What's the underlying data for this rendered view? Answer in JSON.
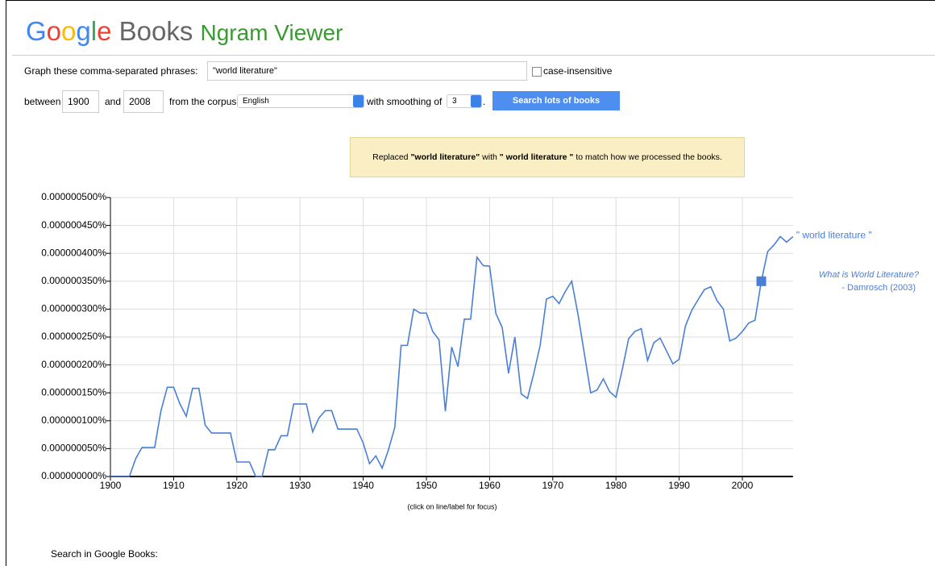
{
  "header": {
    "logo_letters": [
      "G",
      "o",
      "o",
      "g",
      "l",
      "e"
    ],
    "books": "Books",
    "product": "Ngram Viewer"
  },
  "form": {
    "phrases_label": "Graph these comma-separated phrases:",
    "phrases_value": "\"world literature\"",
    "case_label": "case-insensitive",
    "between": "between",
    "start_year": "1900",
    "and": "and",
    "end_year": "2008",
    "corpus_label": "from the corpus",
    "corpus": "English",
    "smoothing_label": "with smoothing of",
    "smoothing": "3",
    "period": ".",
    "button": "Search lots of books"
  },
  "notice": {
    "before": "Replaced ",
    "original": "\"world literature\"",
    "middle": " with ",
    "replacement": "\" world literature \"",
    "after": " to match how we processed the books."
  },
  "chart_data": {
    "type": "line",
    "x": [
      1900,
      1901,
      1902,
      1903,
      1904,
      1905,
      1906,
      1907,
      1908,
      1909,
      1910,
      1911,
      1912,
      1913,
      1914,
      1915,
      1916,
      1917,
      1918,
      1919,
      1920,
      1921,
      1922,
      1923,
      1924,
      1925,
      1926,
      1927,
      1928,
      1929,
      1930,
      1931,
      1932,
      1933,
      1934,
      1935,
      1936,
      1937,
      1938,
      1939,
      1940,
      1941,
      1942,
      1943,
      1944,
      1945,
      1946,
      1947,
      1948,
      1949,
      1950,
      1951,
      1952,
      1953,
      1954,
      1955,
      1956,
      1957,
      1958,
      1959,
      1960,
      1961,
      1962,
      1963,
      1964,
      1965,
      1966,
      1967,
      1968,
      1969,
      1970,
      1971,
      1972,
      1973,
      1974,
      1975,
      1976,
      1977,
      1978,
      1979,
      1980,
      1981,
      1982,
      1983,
      1984,
      1985,
      1986,
      1987,
      1988,
      1989,
      1990,
      1991,
      1992,
      1993,
      1994,
      1995,
      1996,
      1997,
      1998,
      1999,
      2000,
      2001,
      2002,
      2003,
      2004,
      2005,
      2006,
      2007,
      2008
    ],
    "series": [
      {
        "name": "\" world literature \"",
        "color": "#4a7fd6",
        "values": [
          0,
          0,
          0,
          0,
          3.2e-08,
          5.2e-08,
          5.2e-08,
          5.2e-08,
          1.18e-07,
          1.6e-07,
          1.6e-07,
          1.3e-07,
          1.08e-07,
          1.58e-07,
          1.58e-07,
          9.2e-08,
          7.8e-08,
          7.8e-08,
          7.8e-08,
          7.8e-08,
          2.6e-08,
          2.6e-08,
          2.6e-08,
          0,
          0,
          4.8e-08,
          4.8e-08,
          7.3e-08,
          7.3e-08,
          1.3e-07,
          1.3e-07,
          1.3e-07,
          8e-08,
          1.05e-07,
          1.18e-07,
          1.18e-07,
          8.5e-08,
          8.5e-08,
          8.5e-08,
          8.5e-08,
          6e-08,
          2.3e-08,
          3.7e-08,
          1.5e-08,
          4.8e-08,
          8.8e-08,
          2.35e-07,
          2.35e-07,
          3e-07,
          2.93e-07,
          2.93e-07,
          2.6e-07,
          2.45e-07,
          1.17e-07,
          2.32e-07,
          1.97e-07,
          2.82e-07,
          2.82e-07,
          3.93e-07,
          3.78e-07,
          3.77e-07,
          2.92e-07,
          2.67e-07,
          1.85e-07,
          2.5e-07,
          1.48e-07,
          1.4e-07,
          1.85e-07,
          2.35e-07,
          3.18e-07,
          3.23e-07,
          3.1e-07,
          3.32e-07,
          3.5e-07,
          2.9e-07,
          2.2e-07,
          1.5e-07,
          1.55e-07,
          1.75e-07,
          1.52e-07,
          1.42e-07,
          1.92e-07,
          2.47e-07,
          2.6e-07,
          2.65e-07,
          2.08e-07,
          2.4e-07,
          2.48e-07,
          2.25e-07,
          2.02e-07,
          2.1e-07,
          2.7e-07,
          2.98e-07,
          3.17e-07,
          3.35e-07,
          3.4e-07,
          3.15e-07,
          3e-07,
          2.43e-07,
          2.48e-07,
          2.6e-07,
          2.75e-07,
          2.8e-07,
          3.5e-07,
          4.03e-07,
          4.15e-07,
          4.3e-07,
          4.2e-07,
          4.3e-07
        ]
      }
    ],
    "annotation": {
      "x": 2003,
      "y": 3.5e-07,
      "title": "What is World Literature?",
      "author": "- Damrosch (2003)"
    },
    "xlim": [
      1900,
      2008
    ],
    "xticks": [
      1900,
      1910,
      1920,
      1930,
      1940,
      1950,
      1960,
      1970,
      1980,
      1990,
      2000
    ],
    "ylim": [
      0,
      5e-07
    ],
    "yticks": [
      {
        "value": 0,
        "label": "0.000000000%"
      },
      {
        "value": 5e-08,
        "label": "0.000000050%"
      },
      {
        "value": 1e-07,
        "label": "0.000000100%"
      },
      {
        "value": 1.5e-07,
        "label": "0.000000150%"
      },
      {
        "value": 2e-07,
        "label": "0.000000200%"
      },
      {
        "value": 2.5e-07,
        "label": "0.000000250%"
      },
      {
        "value": 3e-07,
        "label": "0.000000300%"
      },
      {
        "value": 3.5e-07,
        "label": "0.000000350%"
      },
      {
        "value": 4e-07,
        "label": "0.000000400%"
      },
      {
        "value": 4.5e-07,
        "label": "0.000000450%"
      },
      {
        "value": 5e-07,
        "label": "0.000000500%"
      }
    ],
    "grid": true,
    "note": "(click on line/label for focus)"
  },
  "footer": {
    "search_label": "Search in Google Books:"
  }
}
